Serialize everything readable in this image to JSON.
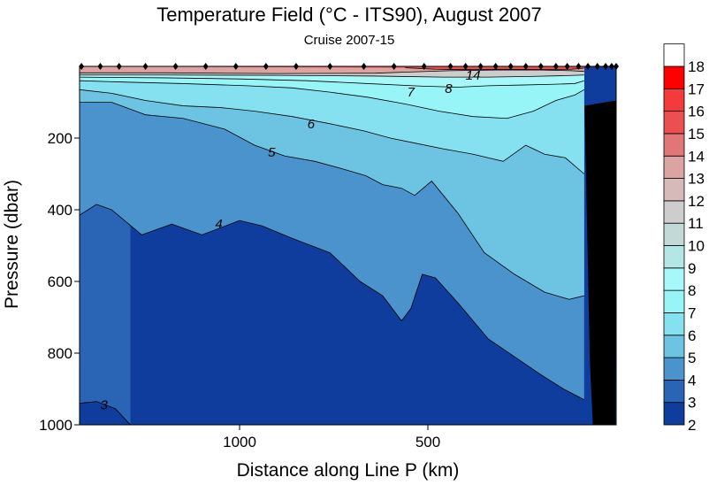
{
  "chart_data": {
    "type": "heatmap",
    "title": "Temperature Field  (°C - ITS90),  August 2007",
    "subtitle": "Cruise 2007-15",
    "xlabel": "Distance along Line P  (km)",
    "ylabel": "Pressure  (dbar)",
    "xlim": [
      1425,
      0
    ],
    "ylim": [
      0,
      1000
    ],
    "x_ticks": [
      {
        "value": 1000,
        "label": "1000"
      },
      {
        "value": 500,
        "label": "500"
      }
    ],
    "y_ticks": [
      {
        "value": 200,
        "label": "200"
      },
      {
        "value": 400,
        "label": "400"
      },
      {
        "value": 600,
        "label": "600"
      },
      {
        "value": 800,
        "label": "800"
      },
      {
        "value": 1000,
        "label": "1000"
      }
    ],
    "colorbar": [
      {
        "label": "2",
        "color": "#ffffff"
      },
      {
        "label": "3",
        "color": "#0f3d9e"
      },
      {
        "label": "4",
        "color": "#2a64b4"
      },
      {
        "label": "5",
        "color": "#4b93cc"
      },
      {
        "label": "6",
        "color": "#6cc3e2"
      },
      {
        "label": "7",
        "color": "#85e0f0"
      },
      {
        "label": "8",
        "color": "#98f5f7"
      },
      {
        "label": "9",
        "color": "#a7f8f8"
      },
      {
        "label": "10",
        "color": "#b3e6e4"
      },
      {
        "label": "11",
        "color": "#c3d9d8"
      },
      {
        "label": "12",
        "color": "#cdcdcd"
      },
      {
        "label": "13",
        "color": "#d6b9b9"
      },
      {
        "label": "14",
        "color": "#dca3a3"
      },
      {
        "label": "15",
        "color": "#e07676"
      },
      {
        "label": "16",
        "color": "#eb4f4f"
      },
      {
        "label": "17",
        "color": "#f33b3b"
      },
      {
        "label": "18",
        "color": "#ff0000"
      }
    ],
    "contour_labels": [
      {
        "text": "3",
        "x": 1360,
        "y": 945
      },
      {
        "text": "4",
        "x": 1055,
        "y": 440
      },
      {
        "text": "5",
        "x": 915,
        "y": 240
      },
      {
        "text": "6",
        "x": 810,
        "y": 160
      },
      {
        "text": "7",
        "x": 545,
        "y": 72
      },
      {
        "text": "8",
        "x": 445,
        "y": 62
      },
      {
        "text": "14",
        "x": 380,
        "y": 25
      }
    ],
    "stations_km": [
      1420,
      1370,
      1320,
      1250,
      1170,
      1090,
      1010,
      930,
      850,
      760,
      670,
      590,
      510,
      440,
      400,
      360,
      320,
      280,
      240,
      200,
      160,
      130,
      100,
      75,
      50,
      28,
      12,
      0
    ],
    "isotherms": [
      {
        "level": 3,
        "color": "#2a64b4",
        "depth": [
          [
            1425,
            940
          ],
          [
            1380,
            935
          ],
          [
            1330,
            955
          ],
          [
            1290,
            1000
          ]
        ]
      },
      {
        "level": 4,
        "color": "#4b93cc",
        "depth": [
          [
            1425,
            415
          ],
          [
            1380,
            385
          ],
          [
            1340,
            400
          ],
          [
            1260,
            470
          ],
          [
            1180,
            440
          ],
          [
            1100,
            470
          ],
          [
            1000,
            430
          ],
          [
            940,
            445
          ],
          [
            860,
            480
          ],
          [
            760,
            520
          ],
          [
            680,
            600
          ],
          [
            620,
            640
          ],
          [
            570,
            710
          ],
          [
            545,
            675
          ],
          [
            515,
            580
          ],
          [
            480,
            590
          ],
          [
            420,
            660
          ],
          [
            340,
            760
          ],
          [
            270,
            810
          ],
          [
            200,
            860
          ],
          [
            140,
            900
          ],
          [
            85,
            930
          ]
        ]
      },
      {
        "level": 5,
        "color": "#6cc3e2",
        "depth": [
          [
            1425,
            100
          ],
          [
            1340,
            100
          ],
          [
            1250,
            135
          ],
          [
            1150,
            145
          ],
          [
            1040,
            175
          ],
          [
            960,
            220
          ],
          [
            880,
            250
          ],
          [
            800,
            265
          ],
          [
            730,
            285
          ],
          [
            665,
            305
          ],
          [
            620,
            330
          ],
          [
            570,
            340
          ],
          [
            535,
            360
          ],
          [
            490,
            320
          ],
          [
            420,
            410
          ],
          [
            350,
            520
          ],
          [
            270,
            580
          ],
          [
            190,
            630
          ],
          [
            125,
            650
          ],
          [
            85,
            640
          ]
        ]
      },
      {
        "level": 6,
        "color": "#85e0f0",
        "depth": [
          [
            1425,
            65
          ],
          [
            1340,
            75
          ],
          [
            1250,
            95
          ],
          [
            1150,
            110
          ],
          [
            1050,
            115
          ],
          [
            960,
            125
          ],
          [
            860,
            140
          ],
          [
            760,
            160
          ],
          [
            670,
            180
          ],
          [
            600,
            200
          ],
          [
            530,
            215
          ],
          [
            460,
            230
          ],
          [
            380,
            245
          ],
          [
            300,
            265
          ],
          [
            240,
            220
          ],
          [
            190,
            245
          ],
          [
            135,
            255
          ],
          [
            85,
            300
          ]
        ]
      },
      {
        "level": 7,
        "color": "#98f5f7",
        "depth": [
          [
            1425,
            40
          ],
          [
            1300,
            44
          ],
          [
            1150,
            48
          ],
          [
            980,
            54
          ],
          [
            860,
            60
          ],
          [
            760,
            72
          ],
          [
            660,
            86
          ],
          [
            560,
            105
          ],
          [
            470,
            125
          ],
          [
            380,
            140
          ],
          [
            290,
            145
          ],
          [
            220,
            125
          ],
          [
            160,
            95
          ],
          [
            110,
            80
          ],
          [
            85,
            65
          ]
        ]
      },
      {
        "level": 8,
        "color": "#a7f8f8",
        "depth": [
          [
            1425,
            30
          ],
          [
            1200,
            32
          ],
          [
            1000,
            35
          ],
          [
            820,
            40
          ],
          [
            660,
            48
          ],
          [
            520,
            55
          ],
          [
            420,
            58
          ],
          [
            340,
            54
          ],
          [
            250,
            52
          ],
          [
            170,
            50
          ],
          [
            110,
            48
          ],
          [
            85,
            40
          ]
        ]
      },
      {
        "level": 12,
        "color": "#cdcdcd",
        "depth": [
          [
            1425,
            24
          ],
          [
            1200,
            24
          ],
          [
            900,
            25
          ],
          [
            640,
            27
          ],
          [
            460,
            30
          ],
          [
            340,
            30
          ],
          [
            230,
            28
          ],
          [
            140,
            26
          ],
          [
            85,
            24
          ]
        ]
      },
      {
        "level": 14,
        "color": "#dca3a3",
        "depth": [
          [
            1425,
            18
          ],
          [
            1200,
            18
          ],
          [
            900,
            20
          ],
          [
            640,
            19
          ],
          [
            560,
            16
          ],
          [
            440,
            12
          ],
          [
            320,
            10
          ],
          [
            200,
            10
          ],
          [
            120,
            12
          ],
          [
            85,
            14
          ]
        ]
      },
      {
        "level": 16,
        "color": "#eb4f4f",
        "depth": [
          [
            560,
            4
          ],
          [
            480,
            8
          ],
          [
            400,
            9
          ],
          [
            300,
            8
          ],
          [
            200,
            9
          ],
          [
            120,
            8
          ],
          [
            85,
            5
          ]
        ]
      }
    ],
    "bathymetry": [
      [
        2,
        1000
      ],
      [
        62,
        1000
      ],
      [
        70,
        820
      ],
      [
        84,
        110
      ],
      [
        0,
        95
      ]
    ],
    "grid": false,
    "legend": "colorbar-right"
  }
}
